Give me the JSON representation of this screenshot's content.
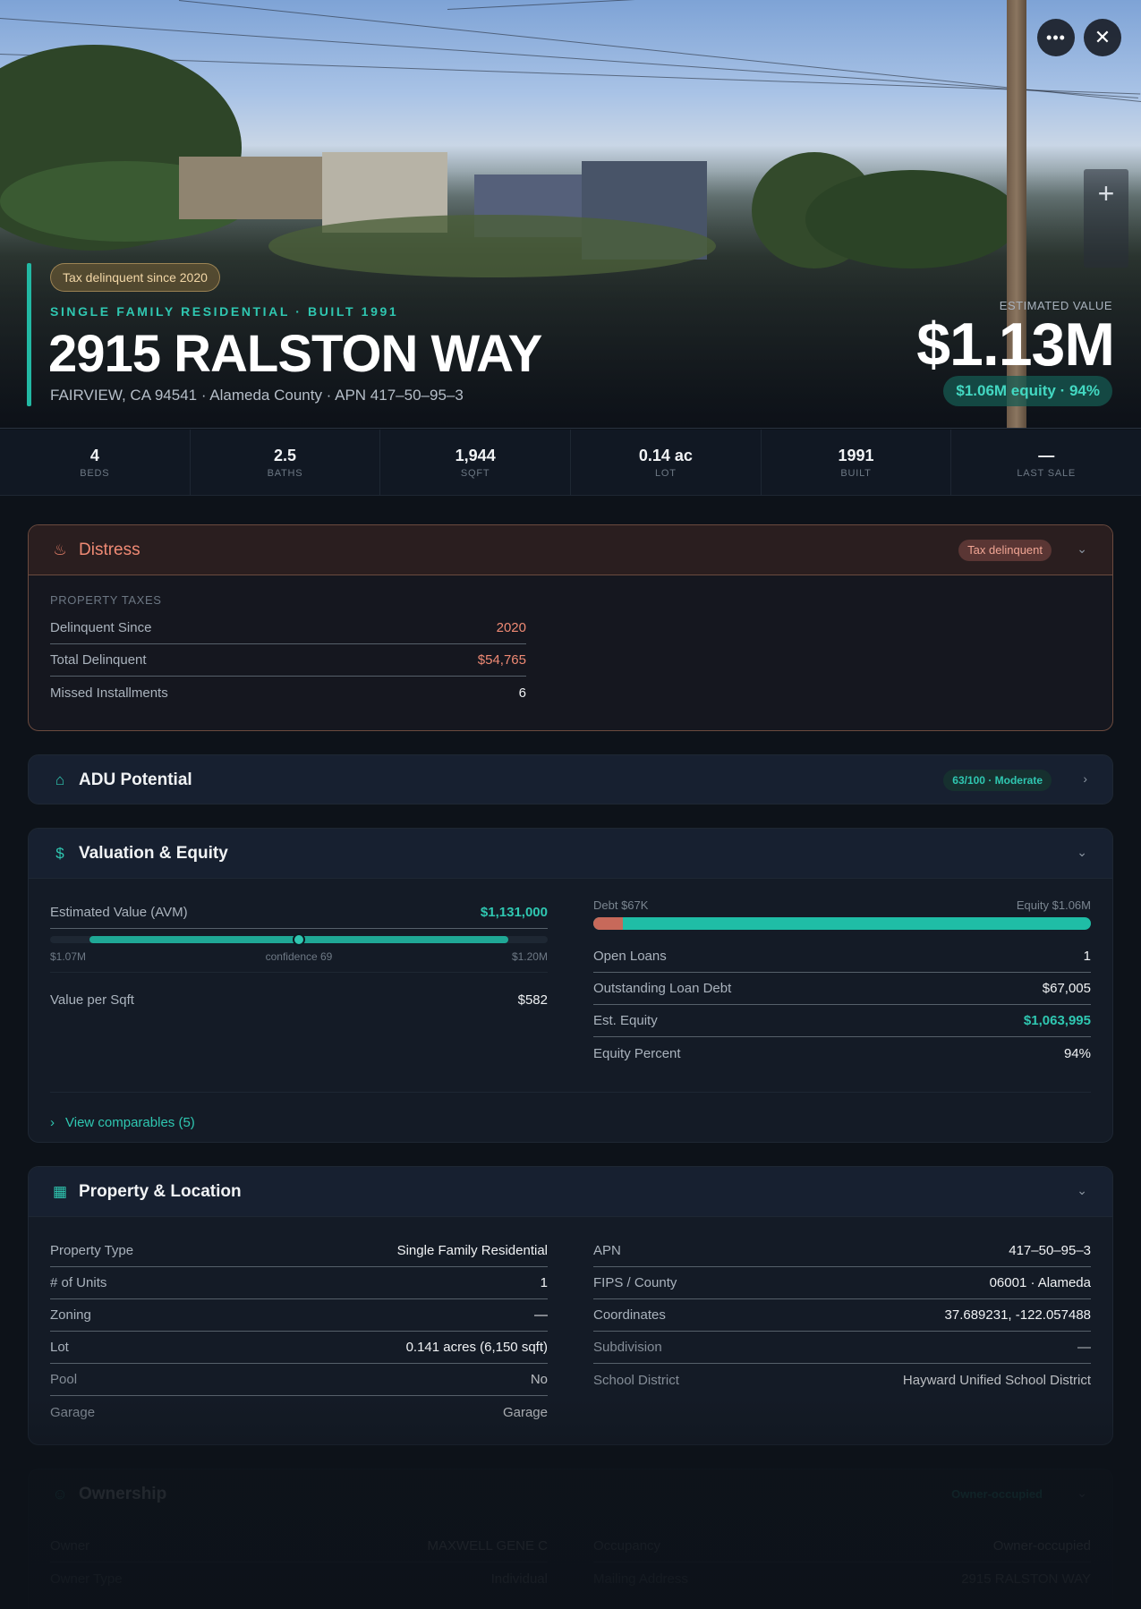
{
  "hero": {
    "tag": "Tax delinquent since 2020",
    "subtype": "SINGLE FAMILY RESIDENTIAL · BUILT 1991",
    "address": "2915 RALSTON WAY",
    "address_sub": "FAIRVIEW, CA 94541 · Alameda County · APN 417–50–95–3",
    "estimated_label": "ESTIMATED VALUE",
    "estimated_value": "$1.13M",
    "equity_pill": "$1.06M equity · 94%",
    "icons": {
      "more": "more-horizontal-icon",
      "close": "close-icon",
      "zoom": "plus-icon"
    }
  },
  "stats": [
    {
      "value": "4",
      "label": "BEDS"
    },
    {
      "value": "2.5",
      "label": "BATHS"
    },
    {
      "value": "1,944",
      "label": "SQFT"
    },
    {
      "value": "0.14 ac",
      "label": "LOT"
    },
    {
      "value": "1991",
      "label": "BUILT"
    },
    {
      "value": "—",
      "label": "LAST SALE"
    }
  ],
  "distress": {
    "title": "Distress",
    "badge": "Tax delinquent",
    "section": "PROPERTY TAXES",
    "rows": [
      {
        "k": "Delinquent Since",
        "v": "2020"
      },
      {
        "k": "Total Delinquent",
        "v": "$54,765"
      },
      {
        "k": "Missed Installments",
        "v": "6"
      }
    ]
  },
  "adu": {
    "title": "ADU Potential",
    "badge": "63/100 · Moderate"
  },
  "valuation": {
    "title": "Valuation & Equity",
    "avm_label": "Estimated Value (AVM)",
    "avm_value": "$1,131,000",
    "avm_low": "$1.07M",
    "avm_confidence": "confidence 69",
    "avm_high": "$1.20M",
    "avm_position": 0.5,
    "vps_label": "Value per Sqft",
    "vps_value": "$582",
    "debt_label": "Debt $67K",
    "equity_label": "Equity $1.06M",
    "debt_fraction": 0.06,
    "rows": [
      {
        "k": "Open Loans",
        "v": "1"
      },
      {
        "k": "Outstanding Loan Debt",
        "v": "$67,005"
      },
      {
        "k": "Est. Equity",
        "v": "$1,063,995"
      },
      {
        "k": "Equity Percent",
        "v": "94%"
      }
    ],
    "comparables": "View comparables (5)"
  },
  "property": {
    "title": "Property & Location",
    "left": [
      {
        "k": "Property Type",
        "v": "Single Family Residential"
      },
      {
        "k": "# of Units",
        "v": "1"
      },
      {
        "k": "Zoning",
        "v": "—"
      },
      {
        "k": "Lot",
        "v": "0.141 acres (6,150 sqft)"
      },
      {
        "k": "Pool",
        "v": "No"
      },
      {
        "k": "Garage",
        "v": "Garage"
      }
    ],
    "right": [
      {
        "k": "APN",
        "v": "417–50–95–3"
      },
      {
        "k": "FIPS / County",
        "v": "06001 · Alameda"
      },
      {
        "k": "Coordinates",
        "v": "37.689231, -122.057488"
      },
      {
        "k": "Subdivision",
        "v": "—"
      },
      {
        "k": "School District",
        "v": "Hayward Unified School District"
      }
    ]
  },
  "ownership": {
    "title": "Ownership",
    "badge": "Owner-occupied",
    "left": [
      {
        "k": "Owner",
        "v": "MAXWELL GENE C"
      },
      {
        "k": "Owner Type",
        "v": "Individual"
      }
    ],
    "right": [
      {
        "k": "Occupancy",
        "v": "Owner-occupied"
      },
      {
        "k": "Mailing Address",
        "v": "2915 RALSTON WAY"
      }
    ]
  }
}
